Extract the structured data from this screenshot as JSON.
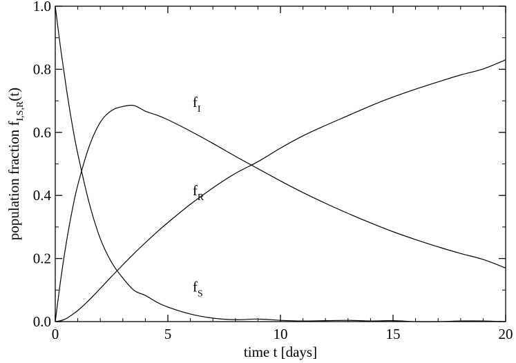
{
  "chart_data": {
    "type": "line",
    "title": "",
    "xlabel": "time t [days]",
    "ylabel": {
      "text": "population fraction f",
      "subscript": "I,S,R",
      "suffix": "(t)"
    },
    "xlim": [
      0,
      20
    ],
    "ylim": [
      0,
      1.0
    ],
    "grid": false,
    "legend": "none (curves labeled inline)",
    "x_ticks": [
      {
        "value": 0,
        "label": "0"
      },
      {
        "value": 5,
        "label": "5"
      },
      {
        "value": 10,
        "label": "10"
      },
      {
        "value": 15,
        "label": "15"
      },
      {
        "value": 20,
        "label": "20"
      }
    ],
    "y_ticks": [
      {
        "value": 0.0,
        "label": "0.0"
      },
      {
        "value": 0.2,
        "label": "0.2"
      },
      {
        "value": 0.4,
        "label": "0.4"
      },
      {
        "value": 0.6,
        "label": "0.6"
      },
      {
        "value": 0.8,
        "label": "0.8"
      },
      {
        "value": 1.0,
        "label": "1.0"
      }
    ],
    "x": [
      0,
      0.25,
      0.5,
      0.75,
      1,
      1.5,
      2,
      2.5,
      3,
      3.5,
      4,
      4.5,
      5,
      6,
      7,
      8,
      9,
      10,
      11,
      12,
      13,
      14,
      15,
      16,
      17,
      18,
      19,
      20
    ],
    "series": [
      {
        "label_main": "f",
        "label_sub": "I",
        "label_at": [
          6.1,
          0.68
        ],
        "values": [
          0,
          0.137,
          0.254,
          0.352,
          0.433,
          0.554,
          0.632,
          0.669,
          0.682,
          0.685,
          0.667,
          0.655,
          0.64,
          0.604,
          0.565,
          0.524,
          0.485,
          0.446,
          0.409,
          0.375,
          0.343,
          0.313,
          0.285,
          0.26,
          0.237,
          0.216,
          0.197,
          0.17
        ]
      },
      {
        "label_main": "f",
        "label_sub": "R",
        "label_at": [
          6.1,
          0.4
        ],
        "values": [
          0,
          0.003,
          0.01,
          0.022,
          0.035,
          0.068,
          0.105,
          0.143,
          0.18,
          0.216,
          0.25,
          0.283,
          0.314,
          0.372,
          0.424,
          0.47,
          0.507,
          0.55,
          0.589,
          0.622,
          0.653,
          0.684,
          0.712,
          0.737,
          0.76,
          0.782,
          0.801,
          0.83
        ]
      },
      {
        "label_main": "f",
        "label_sub": "S",
        "label_at": [
          6.1,
          0.095
        ],
        "values": [
          1.0,
          0.86,
          0.736,
          0.626,
          0.532,
          0.378,
          0.263,
          0.188,
          0.138,
          0.099,
          0.083,
          0.062,
          0.046,
          0.024,
          0.011,
          0.006,
          0.008,
          0.004,
          0.002,
          0.003,
          0.004,
          0.002,
          0.003,
          0.0,
          0.0,
          0.002,
          0.002,
          0.0
        ]
      }
    ]
  }
}
